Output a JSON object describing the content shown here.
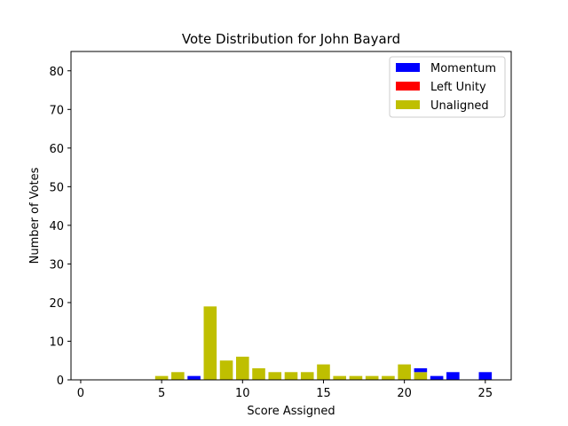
{
  "chart_data": {
    "type": "bar",
    "title": "Vote Distribution for John Bayard",
    "xlabel": "Score Assigned",
    "ylabel": "Number of Votes",
    "xlim": [
      -0.6,
      26.6
    ],
    "ylim": [
      0,
      85
    ],
    "xticks": [
      0,
      5,
      10,
      15,
      20,
      25
    ],
    "yticks": [
      0,
      10,
      20,
      30,
      40,
      50,
      60,
      70,
      80
    ],
    "legend_position": "top-right",
    "stacked": true,
    "grid": false,
    "x": [
      0,
      1,
      2,
      3,
      4,
      5,
      6,
      7,
      8,
      9,
      10,
      11,
      12,
      13,
      14,
      15,
      16,
      17,
      18,
      19,
      20,
      21,
      22,
      23,
      24,
      25
    ],
    "series": [
      {
        "name": "Unaligned",
        "color": "#bfbf00",
        "values": [
          0,
          0,
          0,
          0,
          0,
          1,
          2,
          0,
          19,
          5,
          6,
          3,
          2,
          2,
          2,
          4,
          1,
          1,
          1,
          1,
          4,
          2,
          0,
          0,
          0,
          0
        ]
      },
      {
        "name": "Left Unity",
        "color": "#ff0000",
        "values": [
          0,
          0,
          0,
          0,
          0,
          0,
          0,
          0,
          0,
          0,
          0,
          0,
          0,
          0,
          0,
          0,
          0,
          0,
          0,
          0,
          0,
          0,
          0,
          0,
          0,
          0
        ]
      },
      {
        "name": "Momentum",
        "color": "#0000ff",
        "values": [
          0,
          0,
          0,
          0,
          0,
          0,
          0,
          1,
          0,
          0,
          0,
          0,
          0,
          0,
          0,
          0,
          0,
          0,
          0,
          0,
          0,
          1,
          1,
          2,
          0,
          2
        ]
      }
    ],
    "legend_order": [
      "Momentum",
      "Left Unity",
      "Unaligned"
    ]
  }
}
